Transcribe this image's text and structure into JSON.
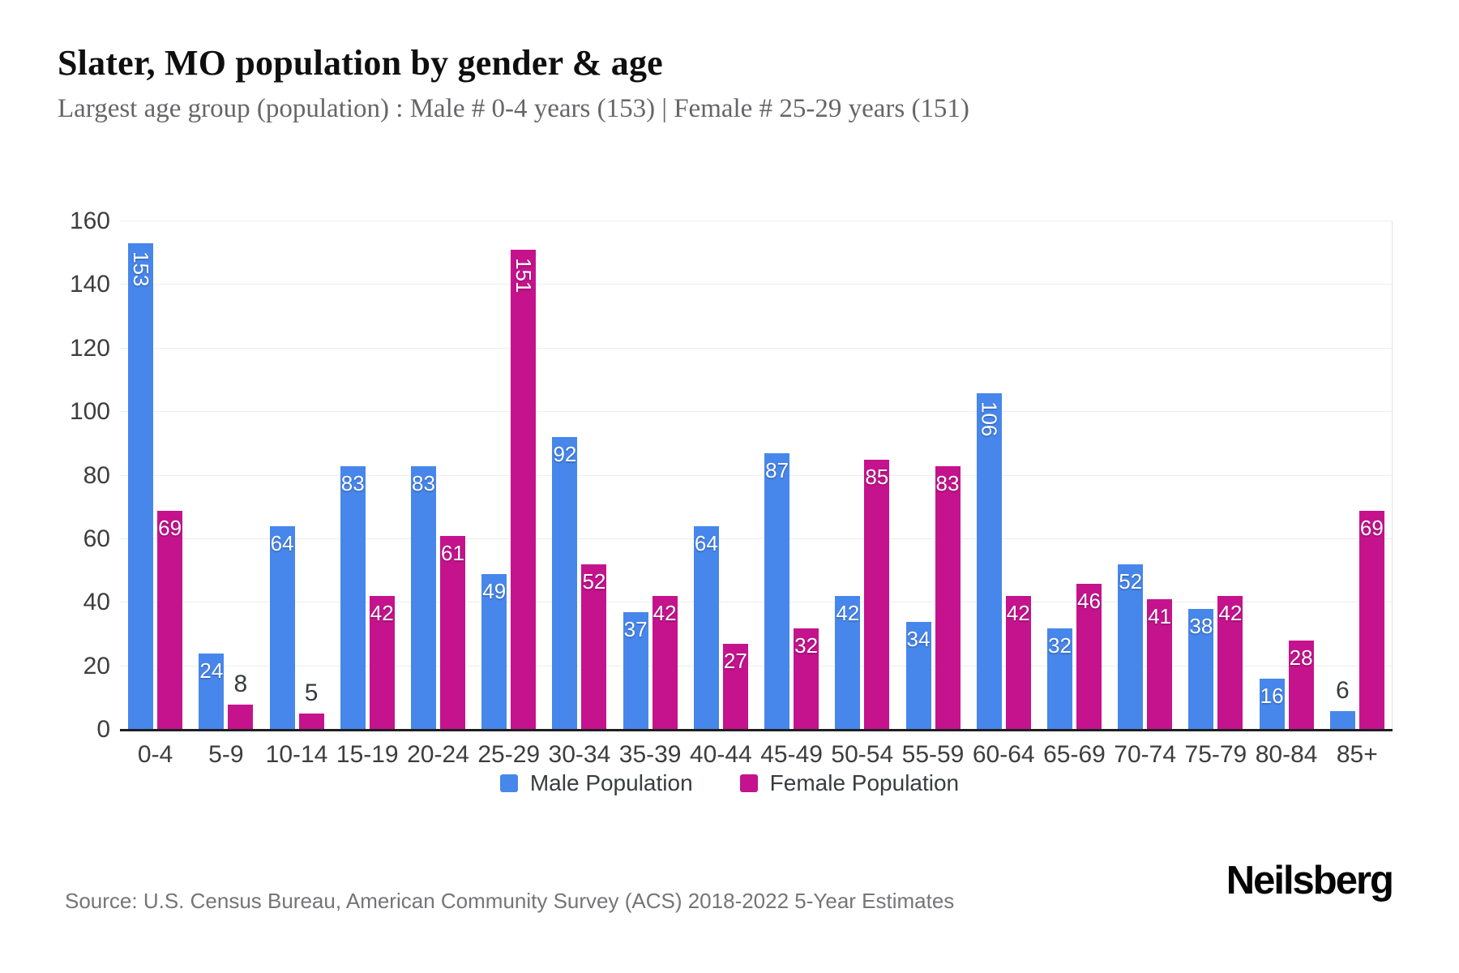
{
  "page": {
    "title": "Slater, MO population by gender & age",
    "subtitle": "Largest age group (population) : Male # 0-4 years (153) | Female # 25-29 years (151)",
    "source": "Source: U.S. Census Bureau, American Community Survey (ACS) 2018-2022 5-Year Estimates",
    "brand": "Neilsberg"
  },
  "chart_data": {
    "type": "bar",
    "title": "Slater, MO population by gender & age",
    "categories": [
      "0-4",
      "5-9",
      "10-14",
      "15-19",
      "20-24",
      "25-29",
      "30-34",
      "35-39",
      "40-44",
      "45-49",
      "50-54",
      "55-59",
      "60-64",
      "65-69",
      "70-74",
      "75-79",
      "80-84",
      "85+"
    ],
    "series": [
      {
        "name": "Male Population",
        "color": "#4787EC",
        "values": [
          153,
          24,
          64,
          83,
          83,
          49,
          92,
          37,
          64,
          87,
          42,
          34,
          106,
          32,
          52,
          38,
          16,
          6
        ]
      },
      {
        "name": "Female Population",
        "color": "#C5138D",
        "values": [
          69,
          8,
          5,
          42,
          61,
          151,
          52,
          42,
          27,
          32,
          85,
          83,
          42,
          46,
          41,
          42,
          28,
          69
        ]
      }
    ],
    "xlabel": "",
    "ylabel": "",
    "ylim": [
      0,
      160
    ],
    "ytick_step": 20,
    "grid": "horizontal-only",
    "legend_position": "bottom",
    "label_rules": {
      "vertical_inside_above": 100,
      "outside_below": 10
    }
  }
}
